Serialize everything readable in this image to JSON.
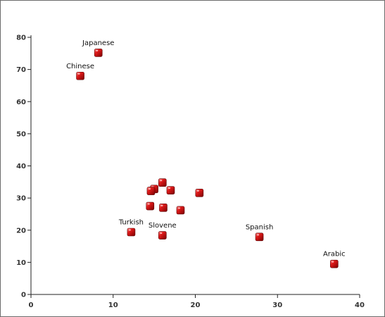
{
  "chart_data": {
    "type": "scatter",
    "title": "",
    "xlabel": "",
    "ylabel": "",
    "xlim": [
      0,
      40
    ],
    "ylim": [
      0,
      80
    ],
    "xticks": [
      0,
      10,
      20,
      30,
      40
    ],
    "yticks": [
      0,
      10,
      20,
      30,
      40,
      50,
      60,
      70,
      80
    ],
    "grid": false,
    "marker_color": "#cc1111",
    "points": [
      {
        "x": 8.2,
        "y": 75.2,
        "label": "Japanese"
      },
      {
        "x": 6.0,
        "y": 68.0,
        "label": "Chinese"
      },
      {
        "x": 16.0,
        "y": 34.8,
        "label": ""
      },
      {
        "x": 15.0,
        "y": 32.8,
        "label": ""
      },
      {
        "x": 14.6,
        "y": 32.2,
        "label": ""
      },
      {
        "x": 17.0,
        "y": 32.4,
        "label": ""
      },
      {
        "x": 20.5,
        "y": 31.6,
        "label": ""
      },
      {
        "x": 14.5,
        "y": 27.5,
        "label": ""
      },
      {
        "x": 16.1,
        "y": 27.0,
        "label": ""
      },
      {
        "x": 18.2,
        "y": 26.2,
        "label": ""
      },
      {
        "x": 12.2,
        "y": 19.4,
        "label": "Turkish"
      },
      {
        "x": 16.0,
        "y": 18.4,
        "label": "Slovene"
      },
      {
        "x": 27.8,
        "y": 17.9,
        "label": "Spanish"
      },
      {
        "x": 36.9,
        "y": 9.5,
        "label": "Arabic"
      }
    ]
  }
}
